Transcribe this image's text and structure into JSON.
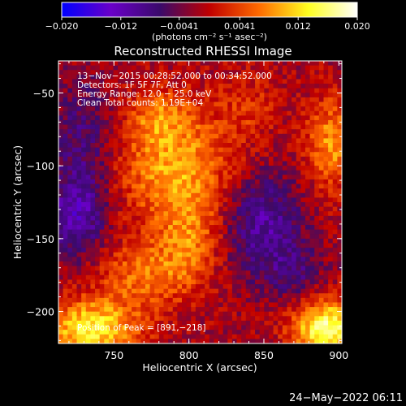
{
  "chart_data": {
    "type": "heatmap",
    "title": "Reconstructed RHESSI Image",
    "xlabel": "Heliocentric X (arcsec)",
    "ylabel": "Heliocentric Y (arcsec)",
    "xlim": [
      713,
      902
    ],
    "ylim": [
      -222,
      -28
    ],
    "x_ticks": [
      750,
      800,
      850,
      900
    ],
    "x_tick_labels": [
      "750",
      "800",
      "850",
      "900"
    ],
    "y_ticks": [
      -50,
      -100,
      -150,
      -200
    ],
    "y_tick_labels": [
      "−50",
      "−100",
      "−150",
      "−200"
    ],
    "colorbar": {
      "range": [
        -0.02,
        0.02
      ],
      "ticks": [
        -0.02,
        -0.012,
        -0.0041,
        0.0041,
        0.012,
        0.02
      ],
      "tick_labels": [
        "−0.020",
        "−0.012",
        "−0.0041",
        "0.0041",
        "0.012",
        "0.020"
      ],
      "units_label": "(photons cm⁻² s⁻¹ asec⁻²)",
      "colors": [
        "#0000ff",
        "#6a00c8",
        "#3a0a6a",
        "#c00000",
        "#ff6a00",
        "#ffff20",
        "#ffffff"
      ]
    },
    "annotations": [
      "13−Nov−2015 00:28:52.000 to 00:34:52.000",
      "Detectors: 1F 5F 7F, Att 0",
      "Energy Range: 12.0 − 25.0 keV",
      "Clean     Total counts: 1.19E+04"
    ],
    "peak_label": "Position of Peak = [891,−218]",
    "peak_position": [
      891,
      -218
    ],
    "features": [
      {
        "x": 790,
        "y": -100,
        "sx": 26,
        "sy": 28,
        "amp": 0.011
      },
      {
        "x": 780,
        "y": -65,
        "sx": 14,
        "sy": 12,
        "amp": 0.006
      },
      {
        "x": 800,
        "y": -150,
        "sx": 14,
        "sy": 22,
        "amp": 0.007
      },
      {
        "x": 770,
        "y": -175,
        "sx": 22,
        "sy": 16,
        "amp": 0.008
      },
      {
        "x": 735,
        "y": -212,
        "sx": 22,
        "sy": 14,
        "amp": 0.015
      },
      {
        "x": 892,
        "y": -212,
        "sx": 16,
        "sy": 14,
        "amp": 0.018
      },
      {
        "x": 895,
        "y": -85,
        "sx": 12,
        "sy": 22,
        "amp": 0.01
      },
      {
        "x": 840,
        "y": -60,
        "sx": 14,
        "sy": 18,
        "amp": 0.004
      },
      {
        "x": 730,
        "y": -80,
        "sx": 14,
        "sy": 28,
        "amp": -0.006
      },
      {
        "x": 725,
        "y": -135,
        "sx": 14,
        "sy": 20,
        "amp": -0.01
      },
      {
        "x": 850,
        "y": -140,
        "sx": 18,
        "sy": 24,
        "amp": -0.009
      },
      {
        "x": 870,
        "y": -175,
        "sx": 14,
        "sy": 14,
        "amp": -0.005
      }
    ]
  },
  "footer": {
    "date": "24−May−2022 06:11"
  }
}
